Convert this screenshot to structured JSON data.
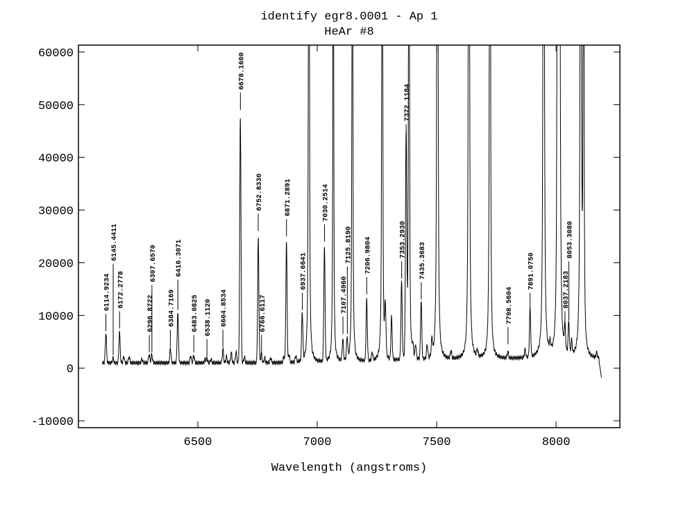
{
  "chart_data": {
    "type": "line",
    "title": "identify egr8.0001 - Ap 1",
    "subtitle": "HeAr #8",
    "xlabel": "Wavelength (angstroms)",
    "ylabel": "",
    "xlim": [
      6000,
      8267
    ],
    "ylim": [
      -11300,
      61300
    ],
    "xticks": [
      6500,
      7000,
      7500,
      8000
    ],
    "yticks": [
      -10000,
      0,
      10000,
      20000,
      30000,
      40000,
      50000,
      60000
    ],
    "spectrum_range": [
      6100,
      8190
    ],
    "series": [
      {
        "name": "spectrum",
        "peaks": [
          [
            6115,
            5600
          ],
          [
            6145,
            900
          ],
          [
            6172,
            5800
          ],
          [
            6190,
            1200
          ],
          [
            6212,
            1200
          ],
          [
            6266,
            700
          ],
          [
            6296,
            1600
          ],
          [
            6307,
            1600
          ],
          [
            6385,
            2800
          ],
          [
            6416,
            9500
          ],
          [
            6470,
            1300
          ],
          [
            6483,
            1400
          ],
          [
            6530,
            600
          ],
          [
            6538,
            900
          ],
          [
            6555,
            700
          ],
          [
            6605,
            2600
          ],
          [
            6620,
            1200
          ],
          [
            6640,
            1900
          ],
          [
            6660,
            2100
          ],
          [
            6678,
            46500
          ],
          [
            6695,
            1100
          ],
          [
            6753,
            23500
          ],
          [
            6766,
            1800
          ],
          [
            6780,
            900
          ],
          [
            6805,
            900
          ],
          [
            6860,
            1200
          ],
          [
            6871,
            22500
          ],
          [
            6882,
            1500
          ],
          [
            6910,
            1200
          ],
          [
            6937,
            9000
          ],
          [
            6965,
            400000
          ],
          [
            7030,
            21500
          ],
          [
            7067,
            250000
          ],
          [
            7107,
            4000
          ],
          [
            7125,
            4000
          ],
          [
            7147,
            300000
          ],
          [
            7207,
            11500
          ],
          [
            7230,
            1500
          ],
          [
            7272,
            350000
          ],
          [
            7285,
            9000
          ],
          [
            7311,
            8000
          ],
          [
            7353,
            14500
          ],
          [
            7372,
            41000
          ],
          [
            7384,
            350000
          ],
          [
            7400,
            1900
          ],
          [
            7412,
            2500
          ],
          [
            7435,
            11000
          ],
          [
            7460,
            2500
          ],
          [
            7480,
            3000
          ],
          [
            7503,
            600000
          ],
          [
            7560,
            1500
          ],
          [
            7635,
            600000
          ],
          [
            7670,
            1200
          ],
          [
            7723,
            500000
          ],
          [
            7798,
            1200
          ],
          [
            7870,
            1500
          ],
          [
            7891,
            9000
          ],
          [
            7948,
            700000
          ],
          [
            7975,
            1500
          ],
          [
            8006,
            400000
          ],
          [
            8014,
            700000
          ],
          [
            8037,
            4500
          ],
          [
            8053,
            6000
          ],
          [
            8065,
            2500
          ],
          [
            8103,
            600000
          ],
          [
            8115,
            300000
          ],
          [
            8170,
            1000
          ]
        ]
      }
    ],
    "line_ids": [
      {
        "label": "6114.9234",
        "x": 6114.9234,
        "mark": 7000
      },
      {
        "label": "6145.4411",
        "x": 6145.4411,
        "mark": 2500
      },
      {
        "label": "6172.2778",
        "x": 6172.2778,
        "mark": 7500
      },
      {
        "label": "6296.8722",
        "x": 6296.8722,
        "mark": 3000
      },
      {
        "label": "6307.6570",
        "x": 6307.657,
        "mark": 3000
      },
      {
        "label": "6384.7169",
        "x": 6384.7169,
        "mark": 4000
      },
      {
        "label": "6416.3071",
        "x": 6416.3071,
        "mark": 11000
      },
      {
        "label": "6483.0825",
        "x": 6483.0825,
        "mark": 3000
      },
      {
        "label": "6538.1120",
        "x": 6538.112,
        "mark": 2200
      },
      {
        "label": "6604.8534",
        "x": 6604.8534,
        "mark": 4000
      },
      {
        "label": "6678.1600",
        "x": 6678.16,
        "mark": 49000
      },
      {
        "label": "6752.8330",
        "x": 6752.833,
        "mark": 26000
      },
      {
        "label": "6766.6117",
        "x": 6766.6117,
        "mark": 3000
      },
      {
        "label": "6871.2891",
        "x": 6871.2891,
        "mark": 25000
      },
      {
        "label": "6937.6641",
        "x": 6937.6641,
        "mark": 11000
      },
      {
        "label": "7030.2514",
        "x": 7030.2514,
        "mark": 24000
      },
      {
        "label": "7107.4960",
        "x": 7107.496,
        "mark": 6500
      },
      {
        "label": "7125.8190",
        "x": 7125.819,
        "mark": 6500
      },
      {
        "label": "7206.9804",
        "x": 7206.9804,
        "mark": 14000
      },
      {
        "label": "7353.2930",
        "x": 7353.293,
        "mark": 17000
      },
      {
        "label": "7372.1184",
        "x": 7372.1184,
        "mark": 43000
      },
      {
        "label": "7435.3683",
        "x": 7435.3683,
        "mark": 13000
      },
      {
        "label": "7798.5604",
        "x": 7798.5604,
        "mark": 4500
      },
      {
        "label": "7891.0750",
        "x": 7891.075,
        "mark": 11000
      },
      {
        "label": "8037.2183",
        "x": 8037.2183,
        "mark": 7500
      },
      {
        "label": "8053.3080",
        "x": 8053.308,
        "mark": 9000
      }
    ]
  }
}
